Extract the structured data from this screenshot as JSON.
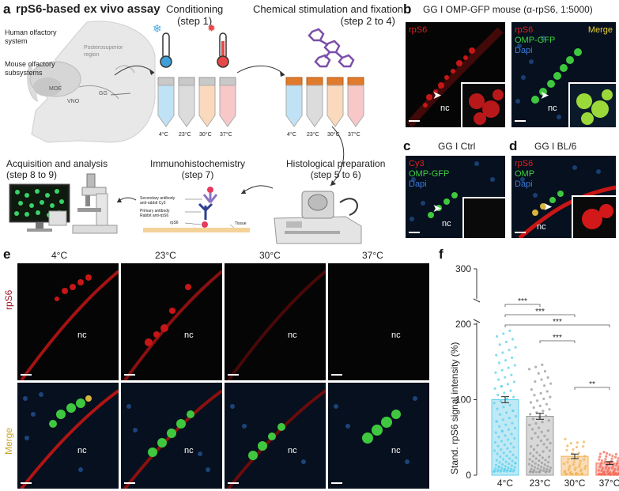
{
  "panel_a": {
    "letter": "a",
    "title": "rpS6-based ex vivo assay",
    "human_system": "Human olfactory\nsystem",
    "mouse_subsystems": "Mouse olfactory\nsubsystems",
    "posterosuperior": "Posterosuperior\nregion",
    "moe": "MOE",
    "vno": "VNO",
    "gg": "GG",
    "conditioning": "Conditioning\n(step 1)",
    "chemical": "Chemical stimulation and fixation\n(step 2 to 4)",
    "acquisition": "Acquisition and analysis\n(step 8 to 9)",
    "immuno": "Immunohistochemistry\n(step 7)",
    "histological": "Histological preparation\n(step 5 to 6)",
    "tube_labels": [
      "4°C",
      "23°C",
      "30°C",
      "37°C"
    ],
    "secondary_ab": "Secondary antibody\nanti-rabbit Cy3",
    "primary_ab": "Primary antibody\nRabbit anti-rpS6",
    "rps6": "rpS6",
    "tissue": "Tissue"
  },
  "panel_b": {
    "letter": "b",
    "title": "GG I OMP-GFP mouse (α-rpS6, 1:5000)",
    "left_label": "rpS6",
    "right_labels": [
      "rpS6",
      "OMP-GFP",
      "Dapi"
    ],
    "merge": "Merge",
    "nc": "nc"
  },
  "panel_c": {
    "letter": "c",
    "title": "GG I Ctrl",
    "labels": [
      "Cy3",
      "OMP-GFP",
      "Dapi"
    ],
    "nc": "nc"
  },
  "panel_d": {
    "letter": "d",
    "title": "GG I BL/6",
    "labels": [
      "rpS6",
      "OMP",
      "Dapi"
    ],
    "nc": "nc"
  },
  "panel_e": {
    "letter": "e",
    "temps": [
      "4°C",
      "23°C",
      "30°C",
      "37°C"
    ],
    "row_top": "rpS6",
    "row_bottom": "Merge",
    "nc": "nc"
  },
  "panel_f": {
    "letter": "f"
  },
  "chart_data": {
    "type": "bar",
    "categories": [
      "4°C",
      "23°C",
      "30°C",
      "37°C"
    ],
    "values": [
      100,
      78,
      25,
      16
    ],
    "errors": [
      4,
      4,
      3,
      2
    ],
    "ylabel": "Stand. rpS6 signal intensity (%)",
    "yticks": [
      0,
      100,
      200,
      300
    ],
    "axis_break": [
      200,
      300
    ],
    "significance": [
      {
        "pair": [
          "4°C",
          "23°C"
        ],
        "label": "***"
      },
      {
        "pair": [
          "4°C",
          "30°C"
        ],
        "label": "***"
      },
      {
        "pair": [
          "4°C",
          "37°C"
        ],
        "label": "***"
      },
      {
        "pair": [
          "23°C",
          "30°C"
        ],
        "label": "***"
      },
      {
        "pair": [
          "30°C",
          "37°C"
        ],
        "label": "**"
      }
    ],
    "colors": [
      "#bfe9f5",
      "#d8d8d8",
      "#f9dcb8",
      "#f8c8c6"
    ],
    "dot_colors": [
      "#5fd0ee",
      "#9a9a9a",
      "#f2b351",
      "#f46b55"
    ]
  }
}
